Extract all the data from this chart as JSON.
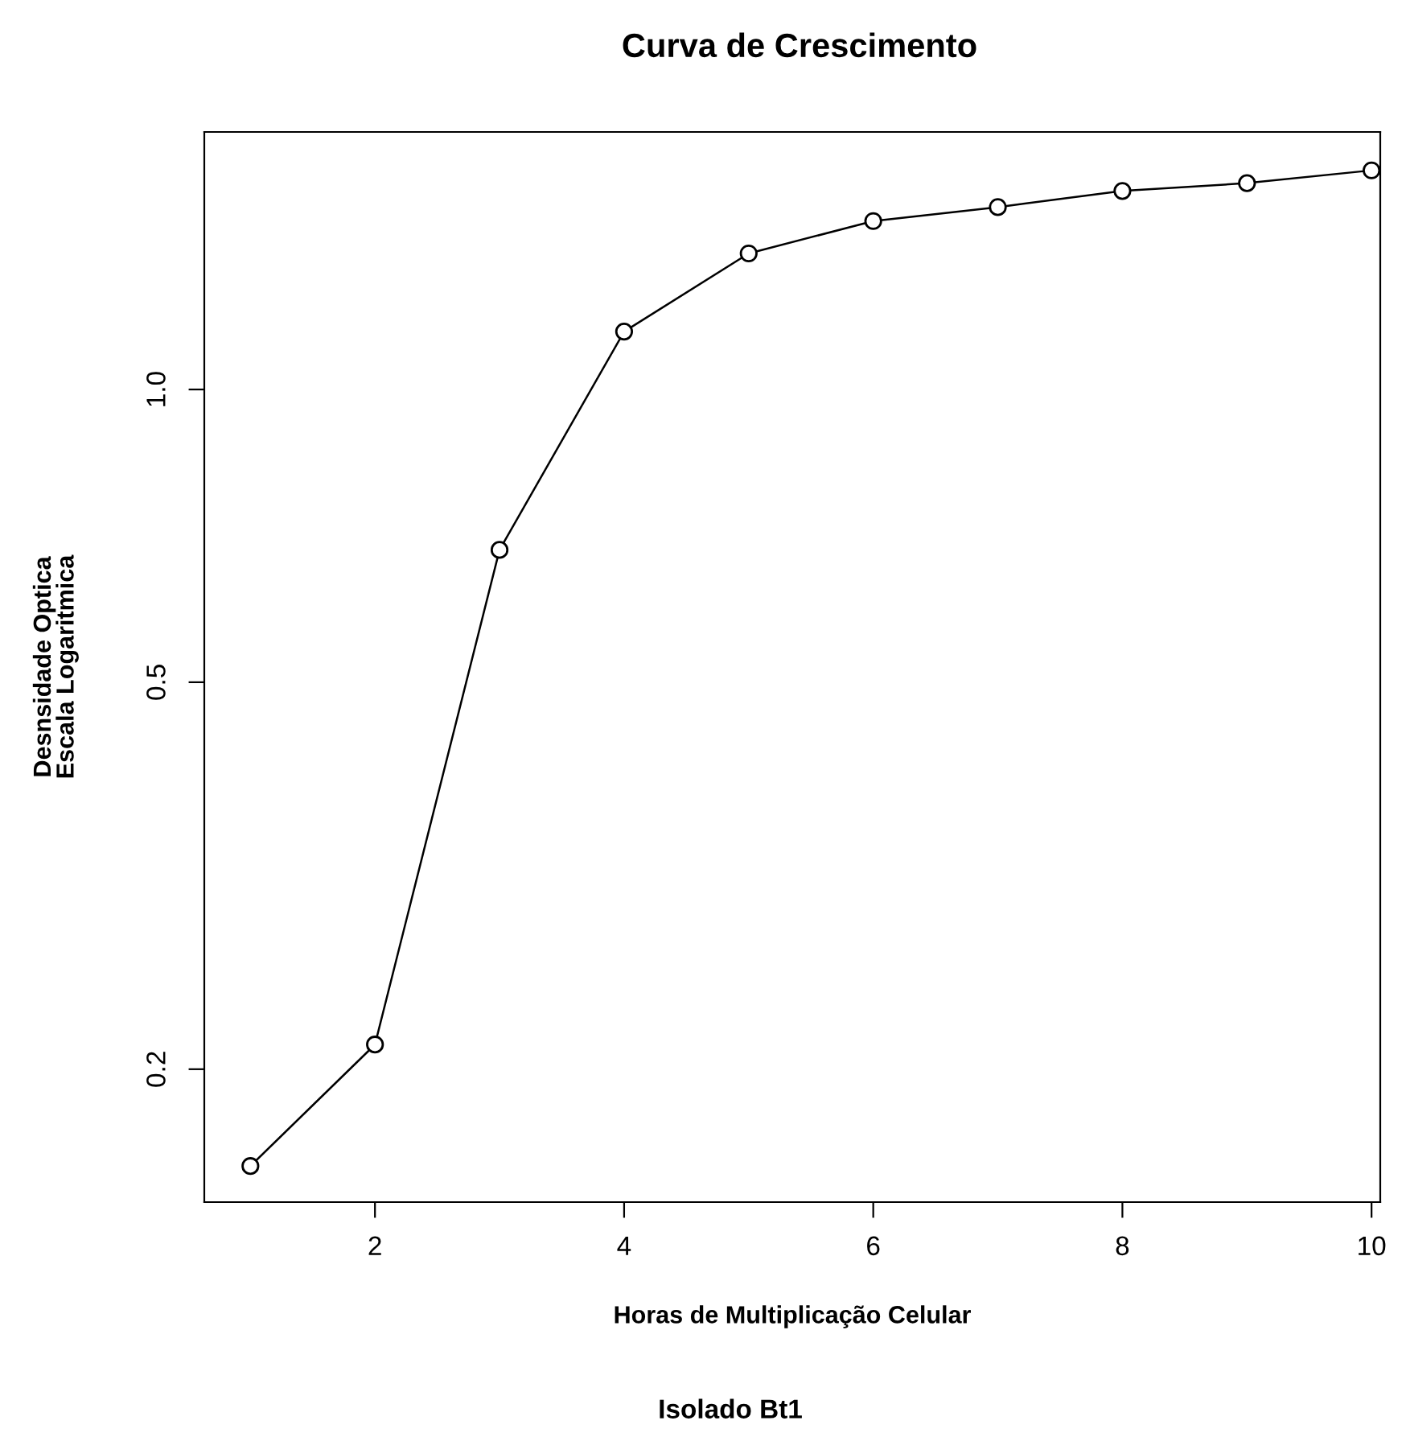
{
  "chart_data": {
    "type": "line",
    "title": "Curva de Crescimento",
    "xlabel": "Horas de Multiplicação Celular",
    "ylabel": "Desnsidade Optica\nEscala Logaritmica",
    "annotations": [
      "Isolado Bt1"
    ],
    "x": [
      1,
      2,
      3,
      4,
      5,
      6,
      7,
      8,
      9,
      10
    ],
    "series": [
      {
        "color": "#000000",
        "values": [
          0.159,
          0.212,
          0.684,
          1.147,
          1.38,
          1.49,
          1.54,
          1.6,
          1.63,
          1.68
        ]
      }
    ],
    "log": "y",
    "xlim": [
      0.63,
      10.07
    ],
    "ylim": [
      0.146,
      1.84
    ],
    "xticks": [
      2,
      4,
      6,
      8,
      10
    ],
    "yticks": [
      0.2,
      0.5,
      {
        "value": 1,
        "label": "1.0"
      }
    ],
    "marker": "circle",
    "line_style": "solid",
    "grid": false,
    "legend": false
  }
}
